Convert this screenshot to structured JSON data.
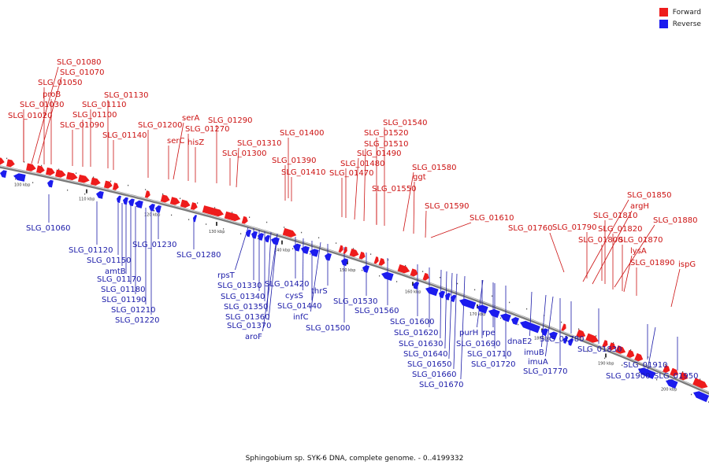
{
  "legend": {
    "forward_label": "Forward",
    "reverse_label": "Reverse",
    "forward_color": "#ee1c1c",
    "reverse_color": "#1c1cee"
  },
  "caption": "Sphingobium sp. SYK-6 DNA, complete genome. - 0..4199332",
  "ticks": [
    "100 kbp",
    "110 kbp",
    "120 kbp",
    "130 kbp",
    "140 kbp",
    "150 kbp",
    "160 kbp",
    "170 kbp",
    "180 kbp",
    "190 kbp",
    "200 kbp"
  ],
  "forward_genes": [
    "SLG_01080",
    "SLG_01070",
    "SLG_01050",
    "proB",
    "SLG_01130",
    "SLG_01030",
    "SLG_01110",
    "SLG_01020",
    "SLG_01100",
    "SLG_01090",
    "serA",
    "SLG_01290",
    "SLG_01200",
    "SLG_01270",
    "SLG_01140",
    "serC",
    "hisZ",
    "SLG_01400",
    "SLG_01310",
    "SLG_01300",
    "SLG_01390",
    "SLG_01410",
    "SLG_01540",
    "SLG_01520",
    "SLG_01510",
    "SLG_01490",
    "SLG_01480",
    "SLG_01470",
    "SLG_01580",
    "ggt",
    "SLG_01550",
    "SLG_01590",
    "SLG_01610",
    "SLG_01850",
    "argH",
    "SLG_01760",
    "SLG_01790",
    "SLG_01810",
    "SLG_01880",
    "SLG_01820",
    "SLG_01800",
    "SLG_01870",
    "lysA",
    "SLG_01890",
    "ispG"
  ],
  "reverse_genes": [
    "SLG_01060",
    "SLG_01120",
    "SLG_01150",
    "amtB",
    "SLG_01170",
    "SLG_01180",
    "SLG_01190",
    "SLG_01210",
    "SLG_01220",
    "SLG_01230",
    "SLG_01280",
    "rpsT",
    "SLG_01330",
    "SLG_01340",
    "SLG_01350",
    "SLG_01360",
    "SLG_01370",
    "aroF",
    "SLG_01420",
    "cysS",
    "SLG_01440",
    "infC",
    "thrS",
    "SLG_01500",
    "SLG_01530",
    "SLG_01560",
    "SLG_01600",
    "SLG_01620",
    "SLG_01630",
    "SLG_01640",
    "SLG_01650",
    "SLG_01660",
    "SLG_01670",
    "purH",
    "rpe",
    "SLG_01690",
    "SLG_01710",
    "SLG_01720",
    "dnaE2",
    "imuB",
    "imuA",
    "SLG_01770",
    "SLG_01780",
    "SLG_01830",
    "SLG_01910",
    "SLG_01900",
    "SLG_01950"
  ]
}
